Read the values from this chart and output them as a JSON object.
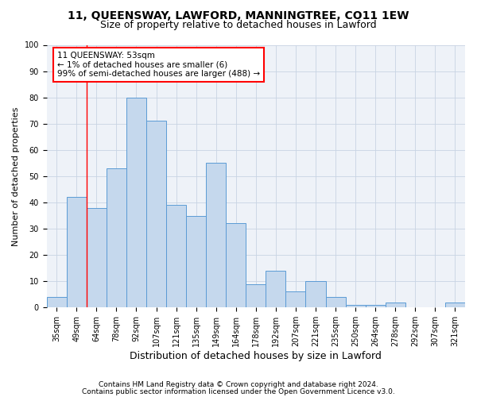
{
  "title1": "11, QUEENSWAY, LAWFORD, MANNINGTREE, CO11 1EW",
  "title2": "Size of property relative to detached houses in Lawford",
  "xlabel": "Distribution of detached houses by size in Lawford",
  "ylabel": "Number of detached properties",
  "categories": [
    "35sqm",
    "49sqm",
    "64sqm",
    "78sqm",
    "92sqm",
    "107sqm",
    "121sqm",
    "135sqm",
    "149sqm",
    "164sqm",
    "178sqm",
    "192sqm",
    "207sqm",
    "221sqm",
    "235sqm",
    "250sqm",
    "264sqm",
    "278sqm",
    "292sqm",
    "307sqm",
    "321sqm"
  ],
  "values": [
    4,
    42,
    38,
    53,
    80,
    71,
    39,
    35,
    55,
    32,
    9,
    14,
    6,
    10,
    4,
    1,
    1,
    2,
    0,
    0,
    2
  ],
  "bar_color": "#c5d8ed",
  "bar_edge_color": "#5b9bd5",
  "grid_color": "#c8d4e3",
  "background_color": "#eef2f8",
  "red_line_x": 1.5,
  "annotation_title": "11 QUEENSWAY: 53sqm",
  "annotation_line1": "← 1% of detached houses are smaller (6)",
  "annotation_line2": "99% of semi-detached houses are larger (488) →",
  "footnote1": "Contains HM Land Registry data © Crown copyright and database right 2024.",
  "footnote2": "Contains public sector information licensed under the Open Government Licence v3.0.",
  "ylim": [
    0,
    100
  ],
  "title1_fontsize": 10,
  "title2_fontsize": 9,
  "xlabel_fontsize": 9,
  "ylabel_fontsize": 8,
  "tick_fontsize": 7,
  "annotation_fontsize": 7.5,
  "footnote_fontsize": 6.5
}
